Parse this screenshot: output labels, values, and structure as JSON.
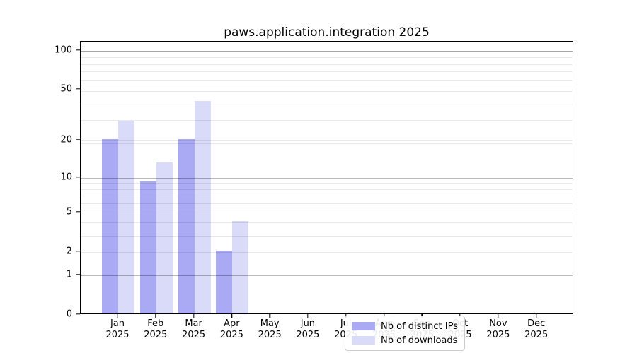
{
  "title": "paws.application.integration 2025",
  "chart_data": {
    "type": "bar",
    "title": "paws.application.integration 2025",
    "categories": [
      "Jan",
      "Feb",
      "Mar",
      "Apr",
      "May",
      "Jun",
      "Jul",
      "Aug",
      "Sep",
      "Oct",
      "Nov",
      "Dec"
    ],
    "year_label": "2025",
    "series": [
      {
        "name": "Nb of distinct IPs",
        "color": "#a9a9f4",
        "values": [
          20,
          9,
          20,
          2,
          0,
          0,
          0,
          0,
          0,
          0,
          0,
          0
        ]
      },
      {
        "name": "Nb of downloads",
        "color": "#dadaf9",
        "values": [
          28,
          13,
          40,
          4,
          0,
          0,
          0,
          0,
          0,
          0,
          0,
          0
        ]
      }
    ],
    "y_axis": {
      "scale": "log1p",
      "tick_values": [
        100,
        50,
        20,
        10,
        5,
        2,
        1,
        0
      ],
      "tick_labels": [
        "100",
        "50",
        "20",
        "10",
        "5",
        "2",
        "1",
        "0"
      ],
      "display_max": 117
    },
    "x_axis": {
      "tick_labels_line1": [
        "Jan",
        "Feb",
        "Mar",
        "Apr",
        "May",
        "Jun",
        "Jul",
        "Aug",
        "Sep",
        "Oct",
        "Nov",
        "Dec"
      ],
      "tick_labels_line2": "2025"
    },
    "grid": {
      "on": true,
      "dark_lines_at": [
        1,
        10,
        100
      ],
      "light_lines_at": [
        2,
        5,
        20,
        50,
        3,
        4,
        6,
        7,
        8,
        9,
        19,
        29,
        39,
        49,
        59,
        69,
        79,
        89,
        99
      ]
    },
    "legend": {
      "position": "lower center",
      "entries": [
        "Nb of distinct IPs",
        "Nb of downloads"
      ]
    }
  },
  "colors": {
    "distinct_ips_bar": "#a9a9f4",
    "downloads_bar": "#dadaf9",
    "axis_spine": "#000000",
    "grid_major": "#b8b8b8",
    "grid_minor": "#e9e9e9",
    "legend_border": "#cccccc",
    "background": "#ffffff"
  }
}
